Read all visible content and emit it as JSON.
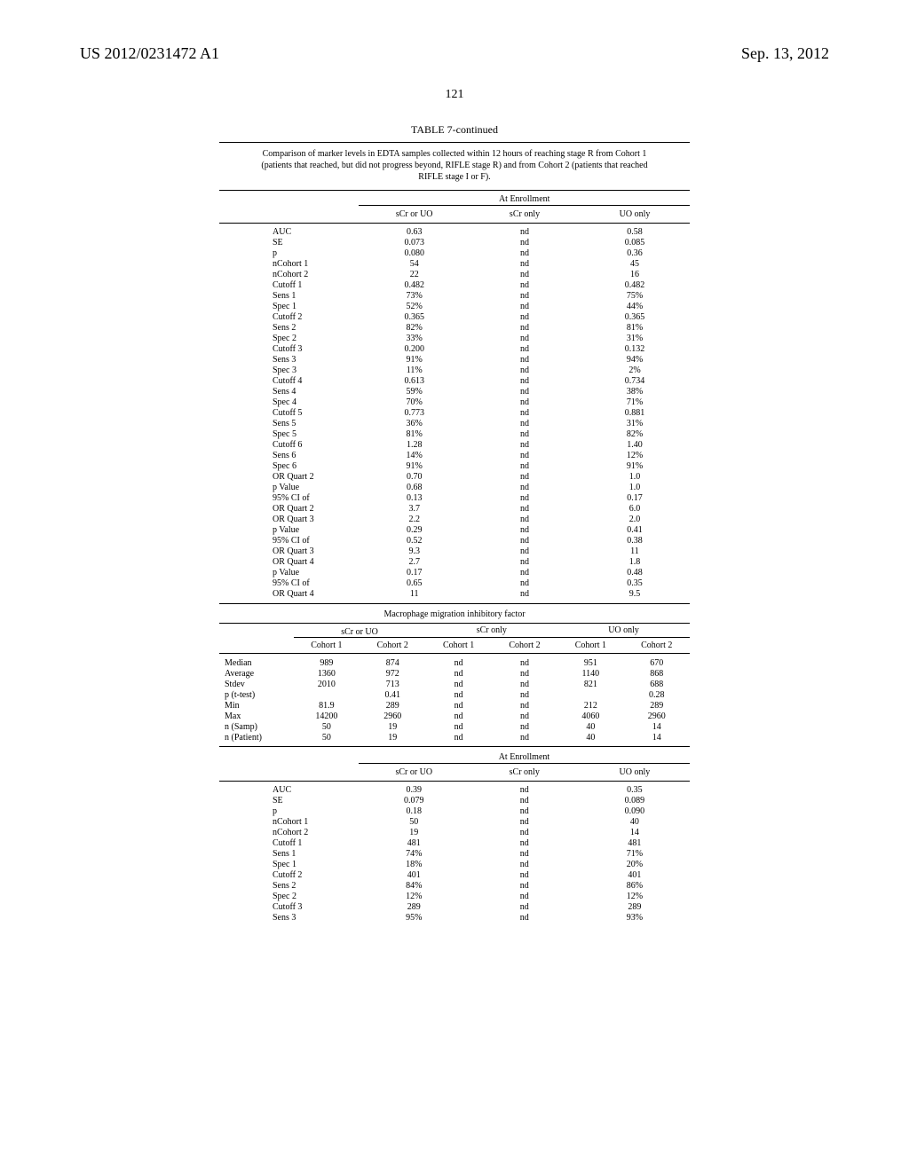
{
  "header": {
    "pub_no": "US 2012/0231472 A1",
    "date": "Sep. 13, 2012",
    "page_number": "121"
  },
  "table7": {
    "title": "TABLE 7-continued",
    "caption": "Comparison of marker levels in EDTA samples collected within 12 hours of reaching stage R from Cohort 1 (patients that reached, but did not progress beyond, RIFLE stage R) and from Cohort 2 (patients that reached RIFLE stage I or F).",
    "enroll_header": "At Enrollment",
    "col_labels": [
      "sCr or UO",
      "sCr only",
      "UO only"
    ],
    "rows": [
      {
        "label": "AUC",
        "scr_uo": "0.63",
        "scr": "nd",
        "uo": "0.58"
      },
      {
        "label": "SE",
        "scr_uo": "0.073",
        "scr": "nd",
        "uo": "0.085"
      },
      {
        "label": "p",
        "scr_uo": "0.080",
        "scr": "nd",
        "uo": "0.36"
      },
      {
        "label": "nCohort 1",
        "scr_uo": "54",
        "scr": "nd",
        "uo": "45"
      },
      {
        "label": "nCohort 2",
        "scr_uo": "22",
        "scr": "nd",
        "uo": "16"
      },
      {
        "label": "Cutoff 1",
        "scr_uo": "0.482",
        "scr": "nd",
        "uo": "0.482"
      },
      {
        "label": "Sens 1",
        "scr_uo": "73%",
        "scr": "nd",
        "uo": "75%"
      },
      {
        "label": "Spec 1",
        "scr_uo": "52%",
        "scr": "nd",
        "uo": "44%"
      },
      {
        "label": "Cutoff 2",
        "scr_uo": "0.365",
        "scr": "nd",
        "uo": "0.365"
      },
      {
        "label": "Sens 2",
        "scr_uo": "82%",
        "scr": "nd",
        "uo": "81%"
      },
      {
        "label": "Spec 2",
        "scr_uo": "33%",
        "scr": "nd",
        "uo": "31%"
      },
      {
        "label": "Cutoff 3",
        "scr_uo": "0.200",
        "scr": "nd",
        "uo": "0.132"
      },
      {
        "label": "Sens 3",
        "scr_uo": "91%",
        "scr": "nd",
        "uo": "94%"
      },
      {
        "label": "Spec 3",
        "scr_uo": "11%",
        "scr": "nd",
        "uo": "2%"
      },
      {
        "label": "Cutoff 4",
        "scr_uo": "0.613",
        "scr": "nd",
        "uo": "0.734"
      },
      {
        "label": "Sens 4",
        "scr_uo": "59%",
        "scr": "nd",
        "uo": "38%"
      },
      {
        "label": "Spec 4",
        "scr_uo": "70%",
        "scr": "nd",
        "uo": "71%"
      },
      {
        "label": "Cutoff 5",
        "scr_uo": "0.773",
        "scr": "nd",
        "uo": "0.881"
      },
      {
        "label": "Sens 5",
        "scr_uo": "36%",
        "scr": "nd",
        "uo": "31%"
      },
      {
        "label": "Spec 5",
        "scr_uo": "81%",
        "scr": "nd",
        "uo": "82%"
      },
      {
        "label": "Cutoff 6",
        "scr_uo": "1.28",
        "scr": "nd",
        "uo": "1.40"
      },
      {
        "label": "Sens 6",
        "scr_uo": "14%",
        "scr": "nd",
        "uo": "12%"
      },
      {
        "label": "Spec 6",
        "scr_uo": "91%",
        "scr": "nd",
        "uo": "91%"
      },
      {
        "label": "OR Quart 2",
        "scr_uo": "0.70",
        "scr": "nd",
        "uo": "1.0"
      },
      {
        "label": "p Value",
        "scr_uo": "0.68",
        "scr": "nd",
        "uo": "1.0"
      },
      {
        "label": "95% CI of",
        "scr_uo": "0.13",
        "scr": "nd",
        "uo": "0.17"
      },
      {
        "label": "OR Quart 2",
        "scr_uo": "3.7",
        "scr": "nd",
        "uo": "6.0"
      },
      {
        "label": "OR Quart 3",
        "scr_uo": "2.2",
        "scr": "nd",
        "uo": "2.0"
      },
      {
        "label": "p Value",
        "scr_uo": "0.29",
        "scr": "nd",
        "uo": "0.41"
      },
      {
        "label": "95% CI of",
        "scr_uo": "0.52",
        "scr": "nd",
        "uo": "0.38"
      },
      {
        "label": "OR Quart 3",
        "scr_uo": "9.3",
        "scr": "nd",
        "uo": "11"
      },
      {
        "label": "OR Quart 4",
        "scr_uo": "2.7",
        "scr": "nd",
        "uo": "1.8"
      },
      {
        "label": "p Value",
        "scr_uo": "0.17",
        "scr": "nd",
        "uo": "0.48"
      },
      {
        "label": "95% CI of",
        "scr_uo": "0.65",
        "scr": "nd",
        "uo": "0.35"
      },
      {
        "label": "OR Quart 4",
        "scr_uo": "11",
        "scr": "nd",
        "uo": "9.5"
      }
    ]
  },
  "mif": {
    "section_label": "Macrophage migration inhibitory factor",
    "col_groups": [
      "sCr or UO",
      "sCr only",
      "UO only"
    ],
    "sub_cols": [
      "Cohort 1",
      "Cohort 2"
    ],
    "rows": [
      {
        "label": "Median",
        "c": [
          "989",
          "874",
          "nd",
          "nd",
          "951",
          "670"
        ]
      },
      {
        "label": "Average",
        "c": [
          "1360",
          "972",
          "nd",
          "nd",
          "1140",
          "868"
        ]
      },
      {
        "label": "Stdev",
        "c": [
          "2010",
          "713",
          "nd",
          "nd",
          "821",
          "688"
        ]
      },
      {
        "label": "p (t-test)",
        "c": [
          "",
          "0.41",
          "nd",
          "nd",
          "",
          "0.28"
        ]
      },
      {
        "label": "Min",
        "c": [
          "81.9",
          "289",
          "nd",
          "nd",
          "212",
          "289"
        ]
      },
      {
        "label": "Max",
        "c": [
          "14200",
          "2960",
          "nd",
          "nd",
          "4060",
          "2960"
        ]
      },
      {
        "label": "n (Samp)",
        "c": [
          "50",
          "19",
          "nd",
          "nd",
          "40",
          "14"
        ]
      },
      {
        "label": "n (Patient)",
        "c": [
          "50",
          "19",
          "nd",
          "nd",
          "40",
          "14"
        ]
      }
    ]
  },
  "mif_enroll": {
    "enroll_header": "At Enrollment",
    "col_labels": [
      "sCr or UO",
      "sCr only",
      "UO only"
    ],
    "rows": [
      {
        "label": "AUC",
        "scr_uo": "0.39",
        "scr": "nd",
        "uo": "0.35"
      },
      {
        "label": "SE",
        "scr_uo": "0.079",
        "scr": "nd",
        "uo": "0.089"
      },
      {
        "label": "p",
        "scr_uo": "0.18",
        "scr": "nd",
        "uo": "0.090"
      },
      {
        "label": "nCohort 1",
        "scr_uo": "50",
        "scr": "nd",
        "uo": "40"
      },
      {
        "label": "nCohort 2",
        "scr_uo": "19",
        "scr": "nd",
        "uo": "14"
      },
      {
        "label": "Cutoff 1",
        "scr_uo": "481",
        "scr": "nd",
        "uo": "481"
      },
      {
        "label": "Sens 1",
        "scr_uo": "74%",
        "scr": "nd",
        "uo": "71%"
      },
      {
        "label": "Spec 1",
        "scr_uo": "18%",
        "scr": "nd",
        "uo": "20%"
      },
      {
        "label": "Cutoff 2",
        "scr_uo": "401",
        "scr": "nd",
        "uo": "401"
      },
      {
        "label": "Sens 2",
        "scr_uo": "84%",
        "scr": "nd",
        "uo": "86%"
      },
      {
        "label": "Spec 2",
        "scr_uo": "12%",
        "scr": "nd",
        "uo": "12%"
      },
      {
        "label": "Cutoff 3",
        "scr_uo": "289",
        "scr": "nd",
        "uo": "289"
      },
      {
        "label": "Sens 3",
        "scr_uo": "95%",
        "scr": "nd",
        "uo": "93%"
      }
    ]
  }
}
